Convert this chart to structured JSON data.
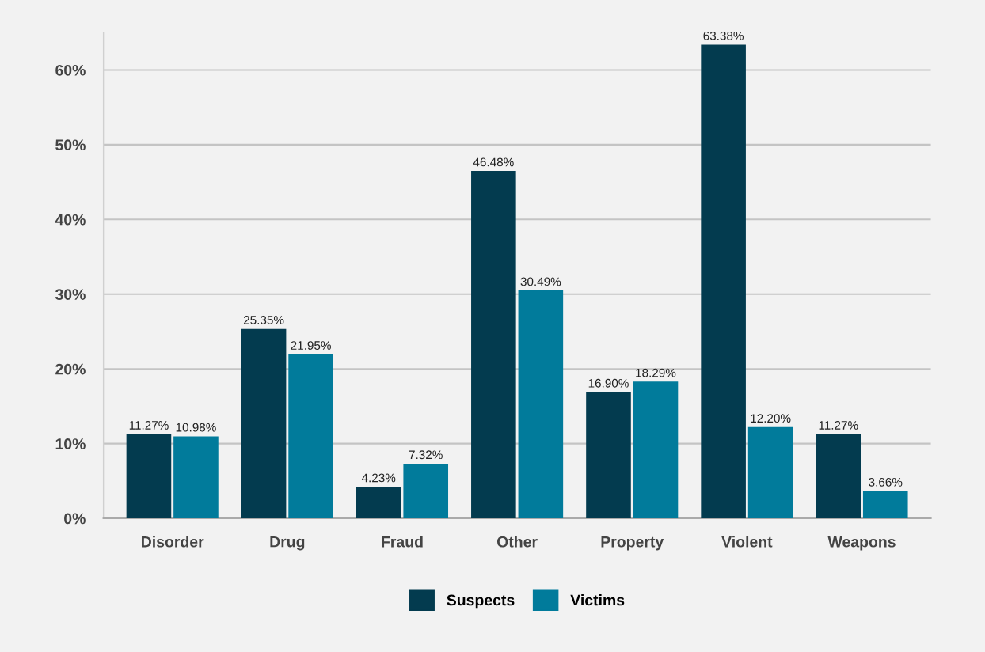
{
  "chart_data": {
    "type": "bar",
    "categories": [
      "Disorder",
      "Drug",
      "Fraud",
      "Other",
      "Property",
      "Violent",
      "Weapons"
    ],
    "series": [
      {
        "name": "Suspects",
        "color": "#033b4f",
        "values": [
          11.27,
          25.35,
          4.23,
          46.48,
          16.9,
          63.38,
          11.27
        ],
        "value_labels": [
          "11.27%",
          "25.35%",
          "4.23%",
          "46.48%",
          "16.90%",
          "63.38%",
          "11.27%"
        ]
      },
      {
        "name": "Victims",
        "color": "#017b9b",
        "values": [
          10.98,
          21.95,
          7.32,
          30.49,
          18.29,
          12.2,
          3.66
        ],
        "value_labels": [
          "10.98%",
          "21.95%",
          "7.32%",
          "30.49%",
          "18.29%",
          "12.20%",
          "3.66%"
        ]
      }
    ],
    "ylim": [
      0,
      65
    ],
    "yticks": [
      {
        "value": 0,
        "label": "0%"
      },
      {
        "value": 10,
        "label": "10%"
      },
      {
        "value": 20,
        "label": "20%"
      },
      {
        "value": 30,
        "label": "30%"
      },
      {
        "value": 40,
        "label": "40%"
      },
      {
        "value": 50,
        "label": "50%"
      },
      {
        "value": 60,
        "label": "60%"
      }
    ],
    "grid": "y",
    "legend": "bottom"
  }
}
